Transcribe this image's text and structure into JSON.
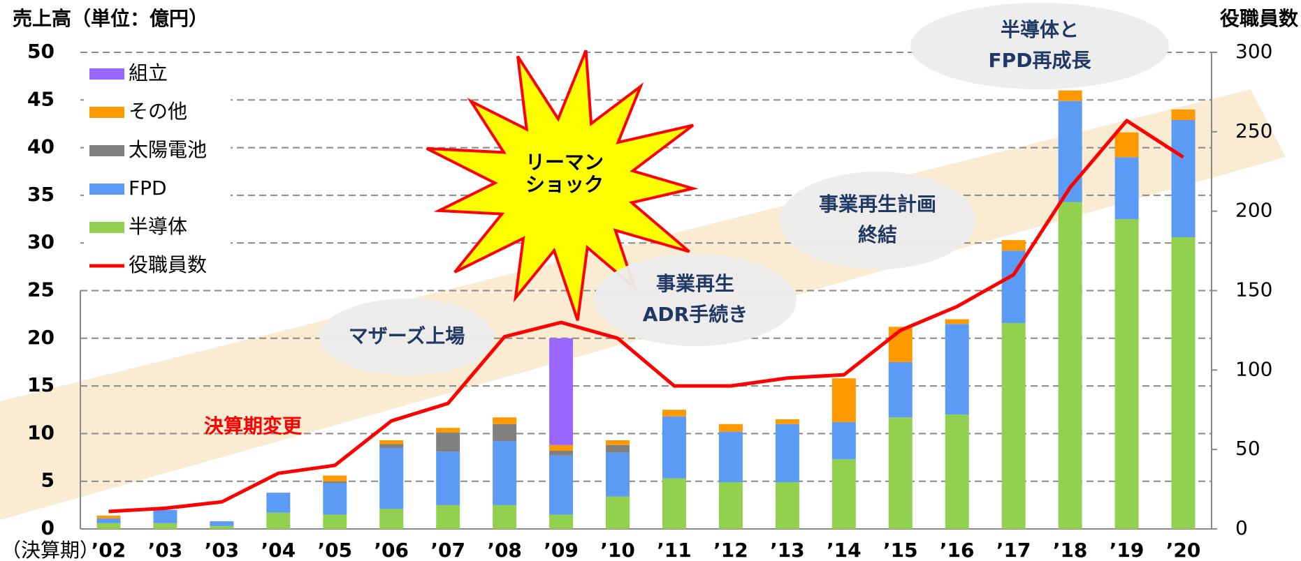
{
  "chart_data": {
    "type": "bar",
    "stacked": true,
    "y_title": "売上高（単位：億円）",
    "y2_title": "役職員数",
    "x_title": "（決算期）",
    "categories": [
      "’02",
      "’03",
      "’03",
      "’04",
      "’05",
      "’06",
      "’07",
      "’08",
      "’09",
      "’10",
      "’11",
      "’12",
      "’13",
      "’14",
      "’15",
      "’16",
      "’17",
      "’18",
      "’19",
      "’20"
    ],
    "series": [
      {
        "name": "半導体",
        "color": "#92d050",
        "values": [
          0.6,
          0.6,
          0.3,
          1.7,
          1.5,
          2.1,
          2.5,
          2.5,
          1.5,
          3.4,
          5.3,
          4.9,
          4.9,
          7.3,
          11.7,
          12.0,
          21.6,
          34.3,
          32.5,
          30.6
        ]
      },
      {
        "name": "FPD",
        "color": "#5b9bf5",
        "values": [
          0.5,
          1.4,
          0.5,
          2.1,
          3.3,
          6.4,
          5.6,
          6.7,
          6.2,
          4.6,
          6.5,
          5.3,
          6.1,
          3.9,
          5.8,
          9.5,
          7.6,
          10.6,
          6.5,
          12.3
        ]
      },
      {
        "name": "太陽電池",
        "color": "#808080",
        "values": [
          null,
          null,
          null,
          null,
          0.2,
          0.4,
          2.0,
          1.8,
          0.5,
          0.8,
          null,
          null,
          null,
          null,
          null,
          null,
          null,
          null,
          null,
          null
        ]
      },
      {
        "name": "その他",
        "color": "#ff9900",
        "values": [
          0.3,
          null,
          null,
          null,
          0.6,
          0.4,
          0.5,
          0.7,
          0.6,
          0.5,
          0.7,
          0.8,
          0.5,
          4.6,
          3.7,
          0.5,
          1.1,
          1.1,
          2.6,
          1.1
        ]
      },
      {
        "name": "組立",
        "color": "#9966ff",
        "values": [
          null,
          null,
          null,
          null,
          null,
          null,
          null,
          null,
          11.2,
          null,
          null,
          null,
          null,
          null,
          null,
          null,
          null,
          null,
          null,
          null
        ]
      },
      {
        "name": "役職員数",
        "color": "#ff0000",
        "axis": "y2",
        "values": [
          11,
          13,
          17,
          35,
          40,
          68,
          79,
          121,
          130,
          120,
          90,
          90,
          95,
          97,
          125,
          140,
          160,
          215,
          257,
          234
        ]
      }
    ],
    "ylim": [
      0,
      50
    ],
    "yticks": [
      0,
      5,
      10,
      15,
      20,
      25,
      30,
      35,
      40,
      45,
      50
    ],
    "y2lim": [
      0,
      300
    ],
    "y2ticks": [
      0,
      50,
      100,
      150,
      200,
      250,
      300
    ],
    "grid": true,
    "legend": "top-left",
    "annotations": [
      {
        "lines": [
          "リーマン",
          "ショック"
        ]
      },
      {
        "lines": [
          "マザーズ上場"
        ]
      },
      {
        "lines": [
          "事業再生",
          "ADR手続き"
        ]
      },
      {
        "lines": [
          "事業再生計画",
          "終結"
        ]
      },
      {
        "lines": [
          "半導体と",
          "FPD再成長"
        ]
      },
      {
        "lines": [
          "決算期変更"
        ]
      }
    ]
  }
}
